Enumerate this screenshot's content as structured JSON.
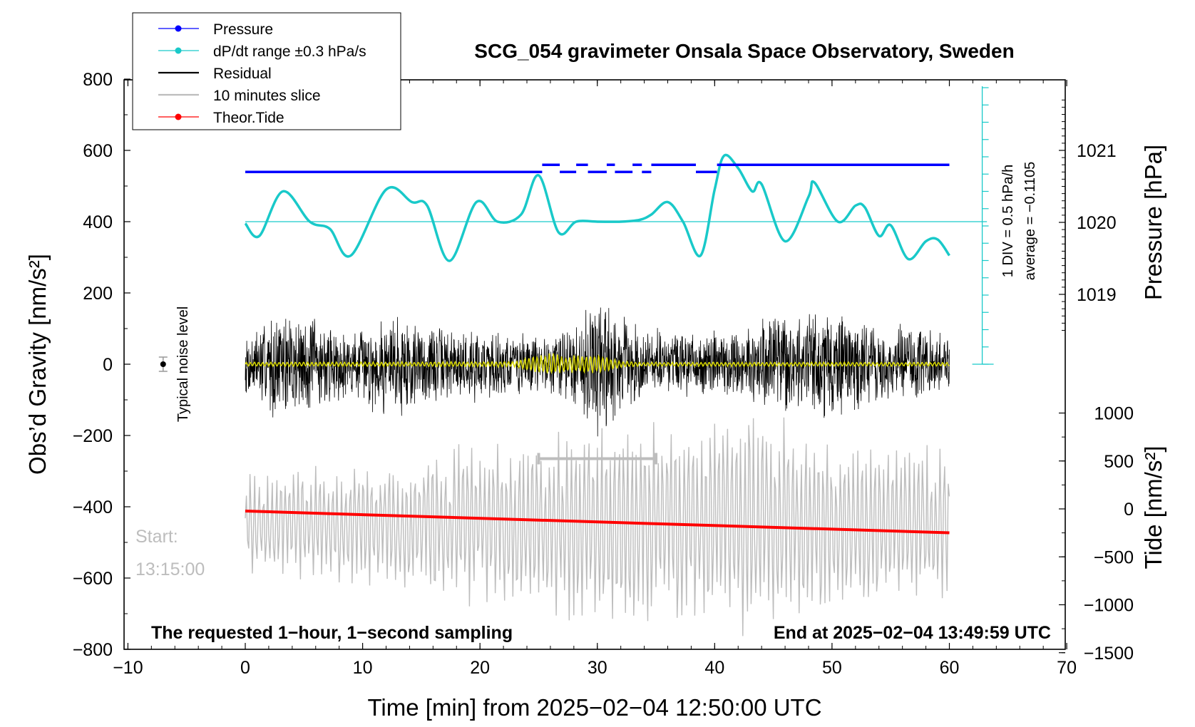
{
  "chart_data": {
    "type": "line",
    "title": "SCG_054 gravimeter Onsala Space Observatory, Sweden",
    "xlabel": "Time [min] from 2025−02−04 12:50:00 UTC",
    "ylabel_left": "Obs’d Gravity [nm/s²]",
    "ylabel_right_pressure": "Pressure [hPa]",
    "ylabel_right_tide": "Tide [nm/s²]",
    "xlim": [
      -10,
      70
    ],
    "ylim_left": [
      -800,
      800
    ],
    "x_ticks": [
      "−10",
      "0",
      "10",
      "20",
      "30",
      "40",
      "50",
      "60",
      "70"
    ],
    "y_ticks_left": [
      "800",
      "600",
      "400",
      "200",
      "0",
      "−200",
      "−400",
      "−600",
      "−800"
    ],
    "y_ticks_pressure": [
      "1021",
      "1020",
      "1019"
    ],
    "y_ticks_tide": [
      "1000",
      "500",
      "0",
      "−500",
      "−1000",
      "−1500"
    ],
    "footer_left": "The requested 1−hour, 1−second sampling",
    "footer_right": "End at 2025−02−04 13:49:59 UTC",
    "noise_label": "Typical noise level",
    "start_label": "Start:",
    "start_time": "13:15:00",
    "pressure_div_label": "1 DIV = 0.5 hPa/h",
    "pressure_avg_label": "average = −0.1105",
    "legend": [
      {
        "label": "Pressure",
        "color": "#0000ff",
        "marker": true
      },
      {
        "label": "dP/dt range ±0.3 hPa/s",
        "color": "#19c9c9",
        "marker": true
      },
      {
        "label": "Residual",
        "color": "#000000",
        "marker": false
      },
      {
        "label": "10 minutes slice",
        "color": "#bdbdbd",
        "marker": false
      },
      {
        "label": "Theor.Tide",
        "color": "#ff0000",
        "marker": true
      }
    ],
    "colors": {
      "pressure": "#0000ff",
      "dpdt": "#19c9c9",
      "residual": "#000000",
      "filtered": "#d8d800",
      "slice": "#bdbdbd",
      "tide": "#ff0000"
    },
    "slice_window_min": [
      25,
      35
    ],
    "noise_level": {
      "x": -7,
      "y": 0,
      "err": 20
    },
    "series": [
      {
        "name": "Pressure",
        "segments": [
          {
            "x": [
              0,
              25.3
            ],
            "y": 1020.7
          },
          {
            "x": [
              25.3,
              26.8
            ],
            "y": 1020.8
          },
          {
            "x": [
              26.8,
              28.2
            ],
            "y": 1020.7
          },
          {
            "x": [
              28.2,
              29.2
            ],
            "y": 1020.8
          },
          {
            "x": [
              29.2,
              30.8
            ],
            "y": 1020.7
          },
          {
            "x": [
              30.8,
              31.5
            ],
            "y": 1020.8
          },
          {
            "x": [
              31.5,
              33.0
            ],
            "y": 1020.7
          },
          {
            "x": [
              33.0,
              33.8
            ],
            "y": 1020.8
          },
          {
            "x": [
              33.8,
              34.6
            ],
            "y": 1020.7
          },
          {
            "x": [
              34.6,
              38.4
            ],
            "y": 1020.8
          },
          {
            "x": [
              38.4,
              40.2
            ],
            "y": 1020.7
          },
          {
            "x": [
              40.2,
              60
            ],
            "y": 1020.8
          }
        ]
      },
      {
        "name": "dP/dt range ±0.3 hPa/s",
        "x": [
          0,
          1.2,
          3.2,
          5.5,
          7.2,
          9.0,
          12.0,
          14.2,
          15.5,
          17.4,
          19.7,
          21.5,
          23.5,
          25.0,
          26.7,
          28.2,
          30.0,
          32.0,
          33.6,
          34.6,
          36.0,
          37.3,
          38.8,
          40.0,
          40.8,
          42.0,
          43.2,
          44.0,
          46.0,
          48.0,
          48.5,
          50.5,
          52.0,
          52.8,
          54.0,
          55.0,
          56.5,
          58.0,
          59.0,
          60
        ],
        "y": [
          395,
          360,
          485,
          400,
          380,
          305,
          490,
          455,
          445,
          290,
          455,
          400,
          420,
          530,
          370,
          400,
          400,
          400,
          405,
          420,
          455,
          400,
          305,
          490,
          585,
          550,
          485,
          505,
          345,
          470,
          510,
          400,
          445,
          440,
          360,
          390,
          295,
          345,
          350,
          305
        ]
      },
      {
        "name": "Theor.Tide",
        "x": [
          0,
          60
        ],
        "y": [
          -412,
          -473
        ]
      }
    ]
  }
}
